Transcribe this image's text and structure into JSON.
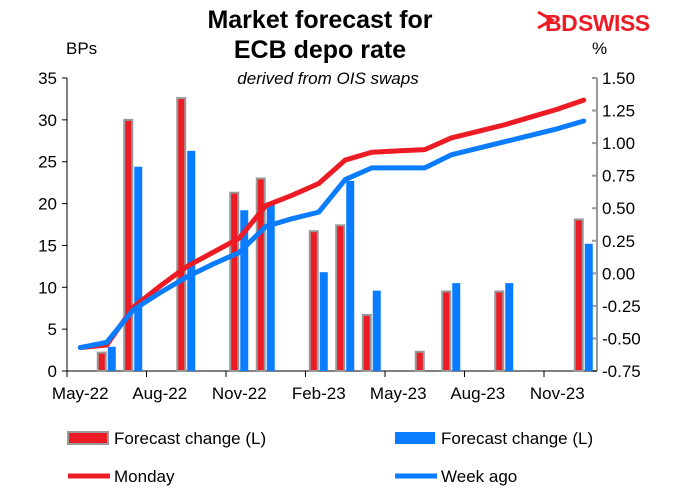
{
  "logo": {
    "text": "BDSWISS",
    "brand_color": "#ED1C24"
  },
  "chart_data": {
    "type": "bar+line",
    "title_line1": "Market forecast for",
    "title_line2": "ECB depo rate",
    "subtitle": "derived from OIS swaps",
    "ylabel_left": "BPs",
    "ylabel_right": "%",
    "ylim_left": [
      0,
      35
    ],
    "yticks_left": [
      "0",
      "5",
      "10",
      "15",
      "20",
      "25",
      "30",
      "35"
    ],
    "ylim_right": [
      -0.75,
      1.5
    ],
    "yticks_right": [
      "-0.75",
      "-0.50",
      "-0.25",
      "0.00",
      "0.25",
      "0.50",
      "0.75",
      "1.00",
      "1.25",
      "1.50"
    ],
    "months": [
      "May-22",
      "Jun-22",
      "Jul-22",
      "Aug-22",
      "Sep-22",
      "Oct-22",
      "Nov-22",
      "Dec-22",
      "Jan-23",
      "Feb-23",
      "Mar-23",
      "Apr-23",
      "May-23",
      "Jun-23",
      "Jul-23",
      "Aug-23",
      "Sep-23",
      "Oct-23",
      "Nov-23",
      "Dec-23"
    ],
    "xtick_labels": [
      "May-22",
      "Aug-22",
      "Nov-22",
      "Feb-23",
      "May-23",
      "Aug-23",
      "Nov-23"
    ],
    "grid": false,
    "legend_placement": "bottom",
    "bar_series": [
      {
        "name": "Forecast change (L)",
        "axis": "left",
        "color": "#ED1C24",
        "border": "#999999",
        "values": [
          null,
          2.2,
          30.0,
          null,
          32.6,
          null,
          21.3,
          23.0,
          null,
          16.7,
          17.4,
          6.7,
          null,
          2.3,
          9.5,
          null,
          9.5,
          null,
          null,
          18.1
        ]
      },
      {
        "name": "Forecast change (L)",
        "axis": "left",
        "color": "#0A7CFF",
        "values": [
          null,
          2.9,
          24.4,
          null,
          26.3,
          null,
          19.2,
          19.9,
          null,
          11.8,
          22.7,
          9.6,
          null,
          null,
          10.5,
          null,
          10.5,
          null,
          null,
          15.2
        ]
      }
    ],
    "line_series": [
      {
        "name": "Monday",
        "axis": "right",
        "color": "#ED1C24",
        "values": [
          -0.57,
          -0.55,
          -0.26,
          -0.1,
          0.05,
          0.16,
          0.27,
          0.52,
          0.6,
          0.69,
          0.87,
          0.93,
          0.94,
          0.95,
          1.04,
          1.09,
          1.14,
          1.2,
          1.26,
          1.33
        ]
      },
      {
        "name": "Week ago",
        "axis": "right",
        "color": "#0A7CFF",
        "values": [
          -0.57,
          -0.53,
          -0.28,
          -0.15,
          -0.03,
          0.07,
          0.16,
          0.36,
          0.42,
          0.47,
          0.72,
          0.81,
          0.81,
          0.81,
          0.91,
          0.96,
          1.01,
          1.06,
          1.11,
          1.17
        ]
      }
    ]
  }
}
